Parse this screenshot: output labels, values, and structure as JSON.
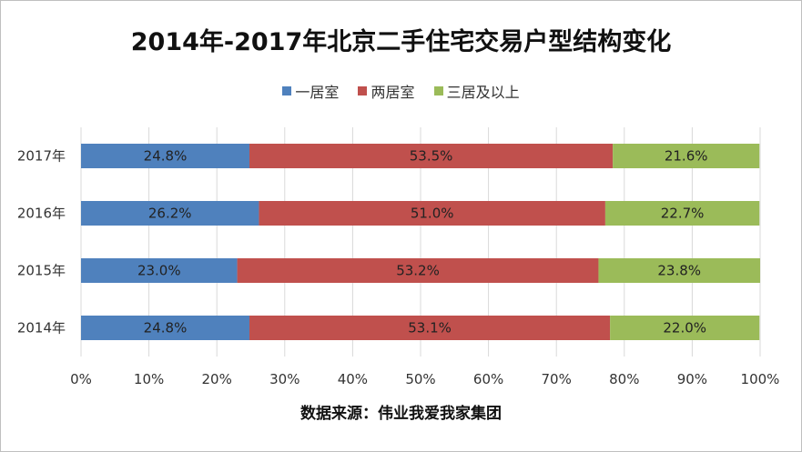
{
  "chart_data": {
    "type": "bar",
    "orientation": "horizontal",
    "stacked": "percent",
    "title": "2014年-2017年北京二手住宅交易户型结构变化",
    "source": "数据来源：伟业我爱我家集团",
    "categories": [
      "2017年",
      "2016年",
      "2015年",
      "2014年"
    ],
    "series": [
      {
        "name": "一居室",
        "color": "#4f81bd",
        "values": [
          24.8,
          26.2,
          23.0,
          24.8
        ]
      },
      {
        "name": "两居室",
        "color": "#c0504d",
        "values": [
          53.5,
          51.0,
          53.2,
          53.1
        ]
      },
      {
        "name": "三居及以上",
        "color": "#9bbb59",
        "values": [
          21.6,
          22.7,
          23.8,
          22.0
        ]
      }
    ],
    "xlim": [
      0,
      100
    ],
    "xticks": [
      "0%",
      "10%",
      "20%",
      "30%",
      "40%",
      "50%",
      "60%",
      "70%",
      "80%",
      "90%",
      "100%"
    ],
    "grid": true,
    "legend": "top"
  }
}
